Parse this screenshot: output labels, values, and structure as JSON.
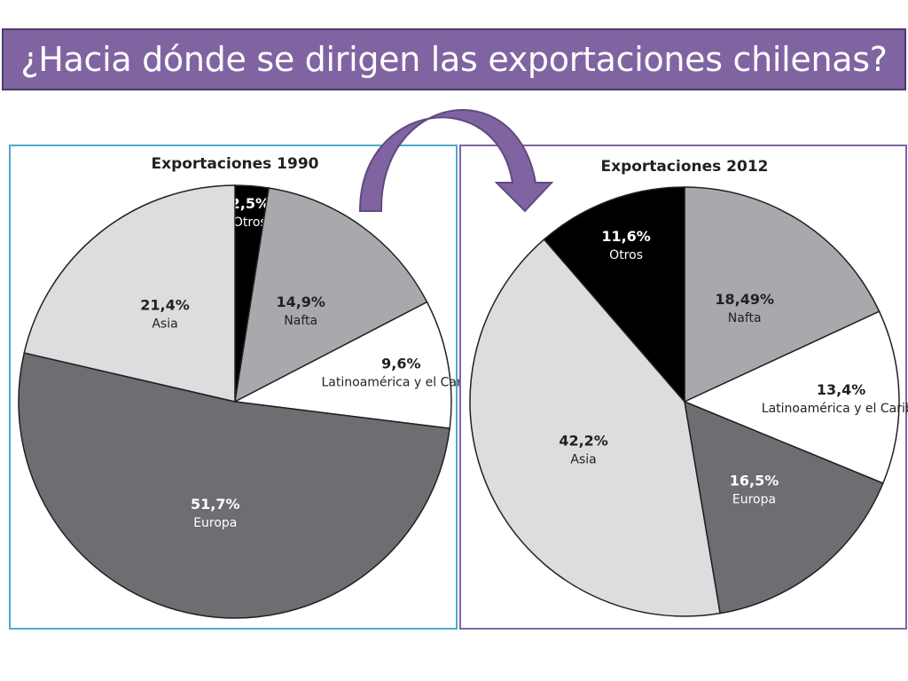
{
  "slide": {
    "title": "¿Hacia dónde se dirigen las exportaciones chilenas?"
  },
  "colors": {
    "banner": "#8064a2",
    "panel_1990_border": "#4bacc6",
    "panel_2012_border": "#8064a2",
    "arrow": "#8064a2"
  },
  "icons": [
    "curved-arrow-icon"
  ],
  "chart_data": [
    {
      "type": "pie",
      "title": "Exportaciones 1990",
      "slices": [
        {
          "label": "Otros",
          "value": 2.5,
          "value_text": "2,5%",
          "color": "#000000",
          "text_color": "#ffffff"
        },
        {
          "label": "Nafta",
          "value": 14.9,
          "value_text": "14,9%",
          "color": "#a7a9ac",
          "text_color": "#231f20"
        },
        {
          "label": "Latinoamérica y el Caribe",
          "value": 9.6,
          "value_text": "9,6%",
          "color": "#ffffff",
          "text_color": "#231f20"
        },
        {
          "label": "Europa",
          "value": 51.7,
          "value_text": "51,7%",
          "color": "#6d6e71",
          "text_color": "#ffffff"
        },
        {
          "label": "Asia",
          "value": 21.4,
          "value_text": "21,4%",
          "color": "#dcddde",
          "text_color": "#231f20"
        }
      ]
    },
    {
      "type": "pie",
      "title": "Exportaciones 2012",
      "slices": [
        {
          "label": "Nafta",
          "value": 18.49,
          "value_text": "18,49%",
          "color": "#a7a9ac",
          "text_color": "#231f20"
        },
        {
          "label": "Latinoamérica y el Caribe",
          "value": 13.4,
          "value_text": "13,4%",
          "color": "#ffffff",
          "text_color": "#231f20"
        },
        {
          "label": "Europa",
          "value": 16.5,
          "value_text": "16,5%",
          "color": "#6d6e71",
          "text_color": "#ffffff"
        },
        {
          "label": "Asia",
          "value": 42.2,
          "value_text": "42,2%",
          "color": "#dcddde",
          "text_color": "#231f20"
        },
        {
          "label": "Otros",
          "value": 11.6,
          "value_text": "11,6%",
          "color": "#000000",
          "text_color": "#ffffff"
        }
      ]
    }
  ]
}
